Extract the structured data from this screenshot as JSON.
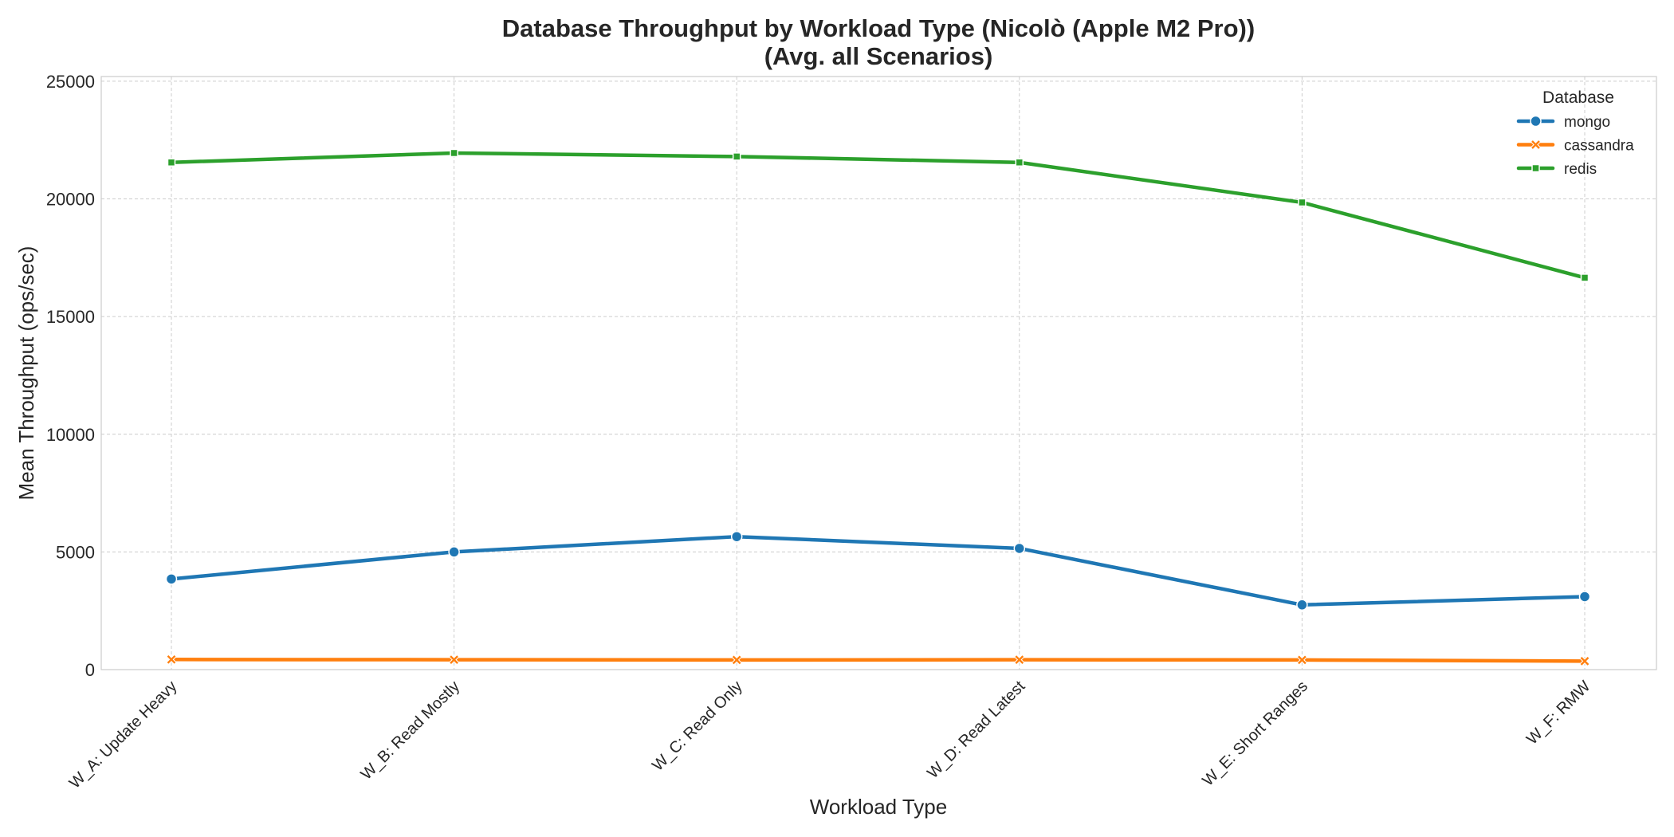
{
  "chart_data": {
    "type": "line",
    "title": "Database Throughput by Workload Type (Nicolò (Apple M2 Pro))",
    "subtitle": "(Avg. all Scenarios)",
    "xlabel": "Workload Type",
    "ylabel": "Mean Throughput (ops/sec)",
    "categories": [
      "W_A: Update Heavy",
      "W_B: Read Mostly",
      "W_C: Read Only",
      "W_D: Read Latest",
      "W_E: Short Ranges",
      "W_F: RMW"
    ],
    "ylim": [
      0,
      25200
    ],
    "yticks": [
      0,
      5000,
      10000,
      15000,
      20000,
      25000
    ],
    "grid": true,
    "legend": {
      "title": "Database",
      "placement": "top-right"
    },
    "series": [
      {
        "name": "mongo",
        "color": "#1f77b4",
        "marker": "circle",
        "values": [
          3850,
          5000,
          5650,
          5150,
          2750,
          3100
        ]
      },
      {
        "name": "cassandra",
        "color": "#ff7f0e",
        "marker": "x",
        "values": [
          430,
          420,
          410,
          420,
          410,
          360
        ]
      },
      {
        "name": "redis",
        "color": "#2ca02c",
        "marker": "square",
        "values": [
          21550,
          21950,
          21800,
          21550,
          19850,
          16650
        ]
      }
    ]
  }
}
